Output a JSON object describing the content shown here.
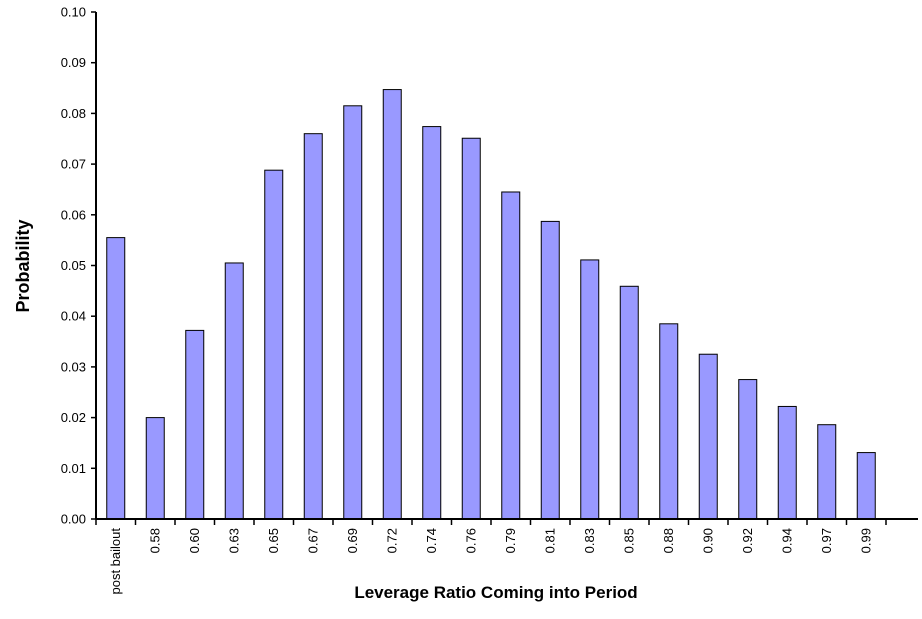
{
  "chart_data": {
    "type": "bar",
    "x_label": "Leverage Ratio Coming into Period",
    "y_label": "Probability",
    "categories": [
      "post bailout",
      "0.58",
      "0.60",
      "0.63",
      "0.65",
      "0.67",
      "0.69",
      "0.72",
      "0.74",
      "0.76",
      "0.79",
      "0.81",
      "0.83",
      "0.85",
      "0.88",
      "0.90",
      "0.92",
      "0.94",
      "0.97",
      "0.99"
    ],
    "values": [
      0.0555,
      0.02,
      0.0372,
      0.0505,
      0.0688,
      0.076,
      0.0815,
      0.0847,
      0.0774,
      0.0751,
      0.0645,
      0.0587,
      0.0511,
      0.0459,
      0.0385,
      0.0325,
      0.0275,
      0.0222,
      0.0186,
      0.0131
    ],
    "color": "#9999ff",
    "ylim": [
      0,
      0.1
    ],
    "yticks": [
      {
        "value": 0,
        "label": "0.00"
      },
      {
        "value": 0.01,
        "label": "0.01"
      },
      {
        "value": 0.02,
        "label": "0.02"
      },
      {
        "value": 0.03,
        "label": "0.03"
      },
      {
        "value": 0.04,
        "label": "0.04"
      },
      {
        "value": 0.05,
        "label": "0.05"
      },
      {
        "value": 0.06,
        "label": "0.06"
      },
      {
        "value": 0.07,
        "label": "0.07"
      },
      {
        "value": 0.08,
        "label": "0.08"
      },
      {
        "value": 0.09,
        "label": "0.09"
      },
      {
        "value": 0.1,
        "label": "0.10"
      }
    ],
    "grid": false
  }
}
